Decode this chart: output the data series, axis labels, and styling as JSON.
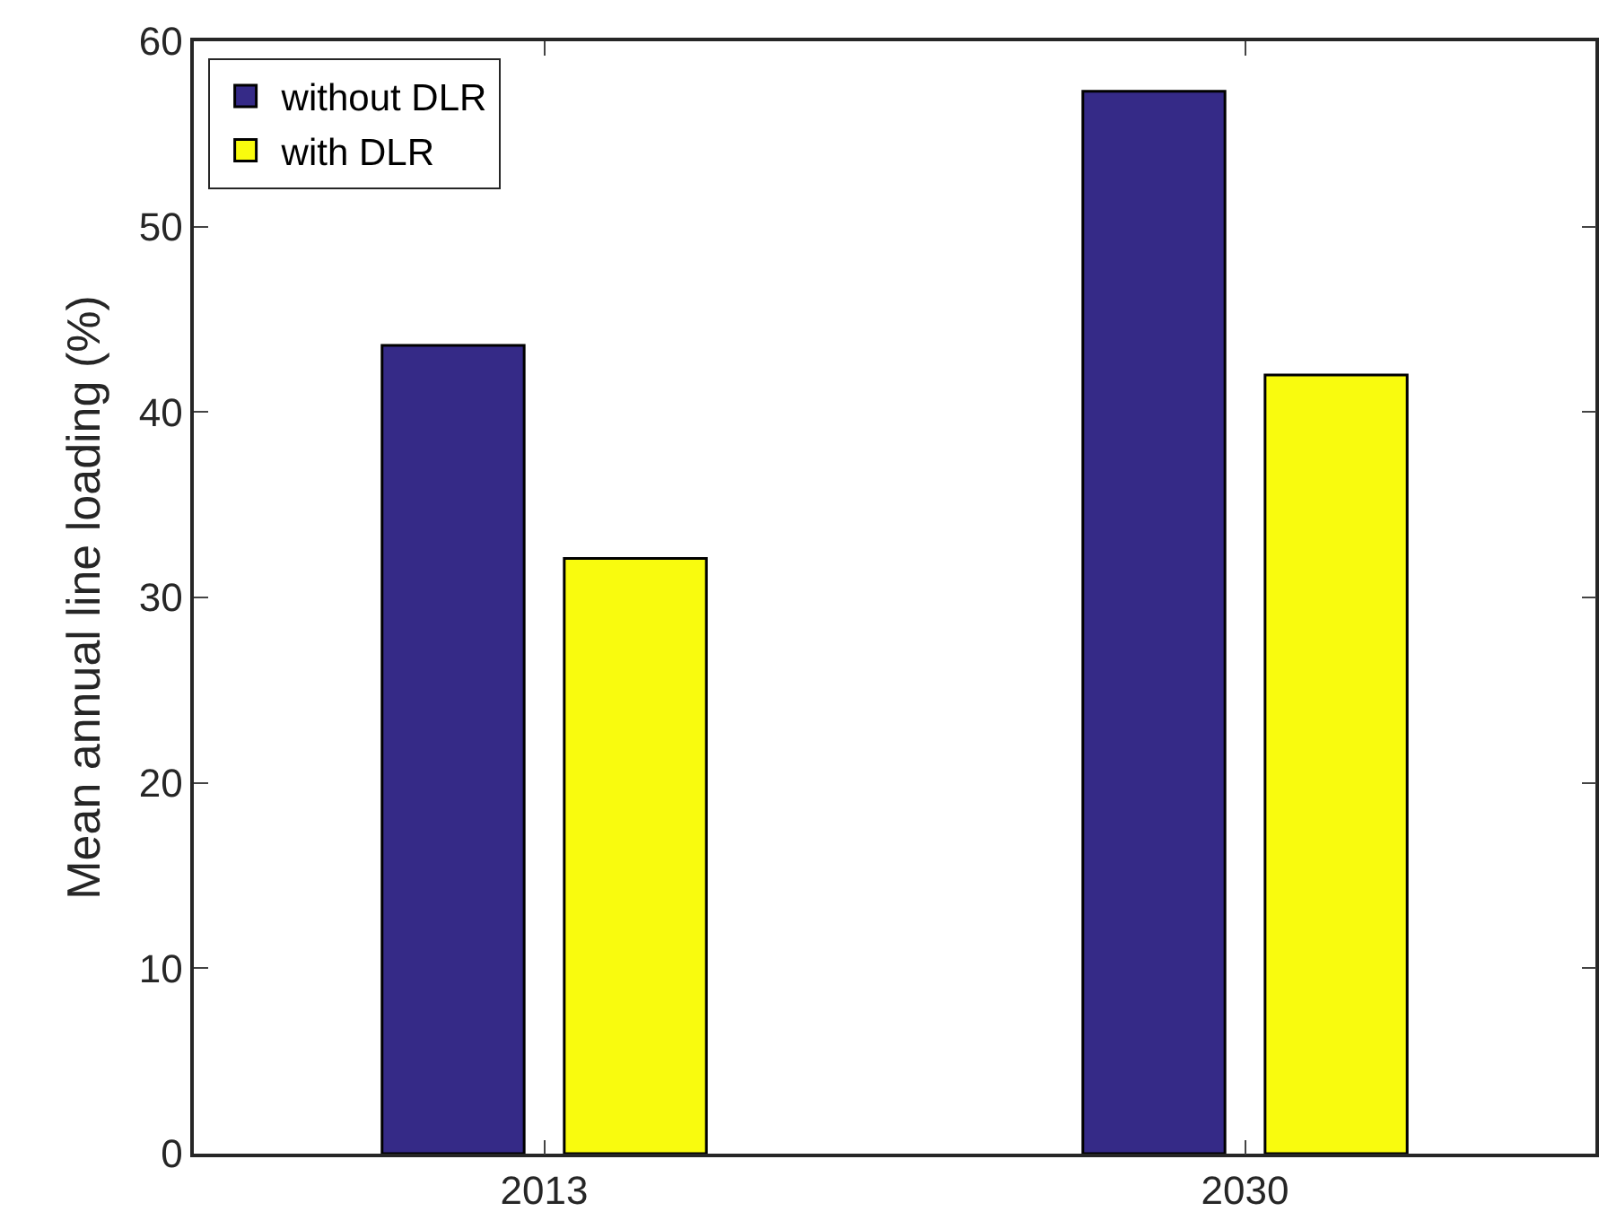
{
  "chart_data": {
    "type": "bar",
    "ylabel": "Mean annual line loading (%)",
    "categories": [
      "2013",
      "2030"
    ],
    "series": [
      {
        "name": "without DLR",
        "color": "#352a87",
        "values": [
          43.6,
          57.3
        ]
      },
      {
        "name": "with DLR",
        "color": "#f9fb0e",
        "values": [
          32.1,
          42.0
        ]
      }
    ],
    "ylim": [
      0,
      60
    ],
    "yticks": [
      0,
      10,
      20,
      30,
      40,
      50,
      60
    ],
    "grid": false,
    "legend": "top left"
  }
}
